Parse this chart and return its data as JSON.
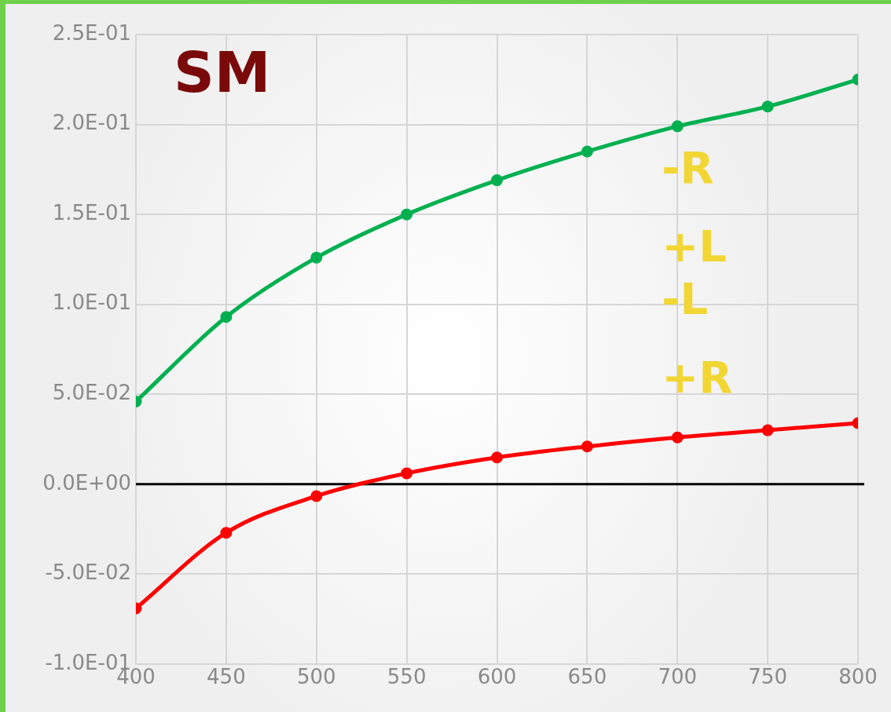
{
  "chart_data": {
    "type": "line",
    "x": [
      400,
      450,
      500,
      550,
      600,
      650,
      700,
      750,
      800
    ],
    "series": [
      {
        "name": "-R +L",
        "color": "#00b050",
        "values": [
          0.046,
          0.093,
          0.126,
          0.15,
          0.169,
          0.185,
          0.199,
          0.21,
          0.225
        ]
      },
      {
        "name": "-L +R",
        "color": "#ff0000",
        "values": [
          -0.069,
          -0.027,
          -0.0066,
          0.0061,
          0.0149,
          0.021,
          0.026,
          0.03,
          0.034
        ]
      }
    ],
    "xlim": [
      400,
      800
    ],
    "xticks": [
      400,
      450,
      500,
      550,
      600,
      650,
      700,
      750,
      800
    ],
    "ylim": [
      -0.1,
      0.25
    ],
    "yticks": [
      {
        "value": -0.1,
        "label": "-1.0E-01"
      },
      {
        "value": -0.05,
        "label": "-5.0E-02"
      },
      {
        "value": 0,
        "label": "0.0E+00"
      },
      {
        "value": 0.05,
        "label": "5.0E-02"
      },
      {
        "value": 0.1,
        "label": "1.0E-01"
      },
      {
        "value": 0.15,
        "label": "1.5E-01"
      },
      {
        "value": 0.2,
        "label": "2.0E-01"
      },
      {
        "value": 0.25,
        "label": "2.5E-01"
      }
    ],
    "ref_lines": [
      {
        "axis": "y",
        "value": 0,
        "color": "#000000"
      }
    ],
    "annotations": [
      "SM"
    ],
    "grid": true,
    "marker": "circle",
    "line_style": "solid",
    "legend": false
  }
}
